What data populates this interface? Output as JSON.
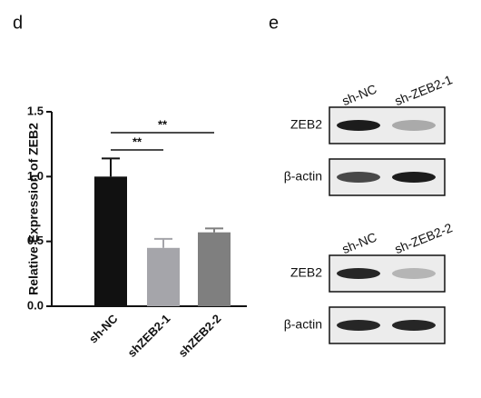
{
  "panel_labels": [
    "d",
    "e"
  ],
  "chart_data": {
    "type": "bar",
    "ylabel": "Relative Expression of ZEB2",
    "categories": [
      "sh-NC",
      "shZEB2-1",
      "shZEB2-2"
    ],
    "values": [
      1.0,
      0.45,
      0.57
    ],
    "errors": [
      0.14,
      0.07,
      0.03
    ],
    "colors": [
      "#111111",
      "#a5a5aa",
      "#7f7f7f"
    ],
    "ylim": [
      0,
      1.5
    ],
    "yticks": [
      {
        "value": 0,
        "label": "0.0"
      },
      {
        "value": 0.5,
        "label": "0.5"
      },
      {
        "value": 1,
        "label": "1.0"
      },
      {
        "value": 1.5,
        "label": "1.5"
      }
    ],
    "annotations": [
      {
        "text": "**",
        "from": 0,
        "to": 1
      },
      {
        "text": "**",
        "from": 0,
        "to": 2
      }
    ]
  },
  "blots": [
    {
      "lanes": [
        "sh-NC",
        "sh-ZEB2-1"
      ],
      "rows": [
        "ZEB2",
        "β-actin"
      ]
    },
    {
      "lanes": [
        "sh-NC",
        "sh-ZEB2-2"
      ],
      "rows": [
        "ZEB2",
        "β-actin"
      ]
    }
  ]
}
